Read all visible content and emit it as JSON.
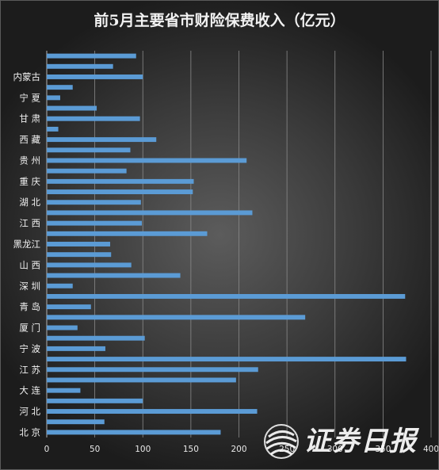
{
  "chart_data": {
    "type": "bar",
    "orientation": "horizontal",
    "title": "前5月主要省市财险保费收入（亿元）",
    "xlim": [
      0,
      400
    ],
    "xticks": [
      0,
      50,
      100,
      150,
      200,
      250,
      300,
      350,
      400
    ],
    "grid": true,
    "bar_color": "#5b9bd5",
    "category_labels": [
      "北 京",
      "河 北",
      "大 连",
      "江 苏",
      "宁 波",
      "厦 门",
      "青 岛",
      "深 圳",
      "山 西",
      "黑龙江",
      "江 西",
      "湖 北",
      "重 庆",
      "贵 州",
      "西 藏",
      "甘 肃",
      "宁 夏",
      "内蒙古"
    ],
    "values": [
      181,
      60,
      219,
      100,
      35,
      197,
      220,
      374,
      61,
      102,
      32,
      269,
      46,
      373,
      27,
      139,
      88,
      67,
      66,
      167,
      99,
      214,
      98,
      152,
      153,
      83,
      208,
      87,
      114,
      12,
      97,
      52,
      14,
      27,
      100,
      69,
      93
    ]
  },
  "watermark": {
    "text": "证券日报",
    "logo": "swirl-sphere-logo"
  }
}
